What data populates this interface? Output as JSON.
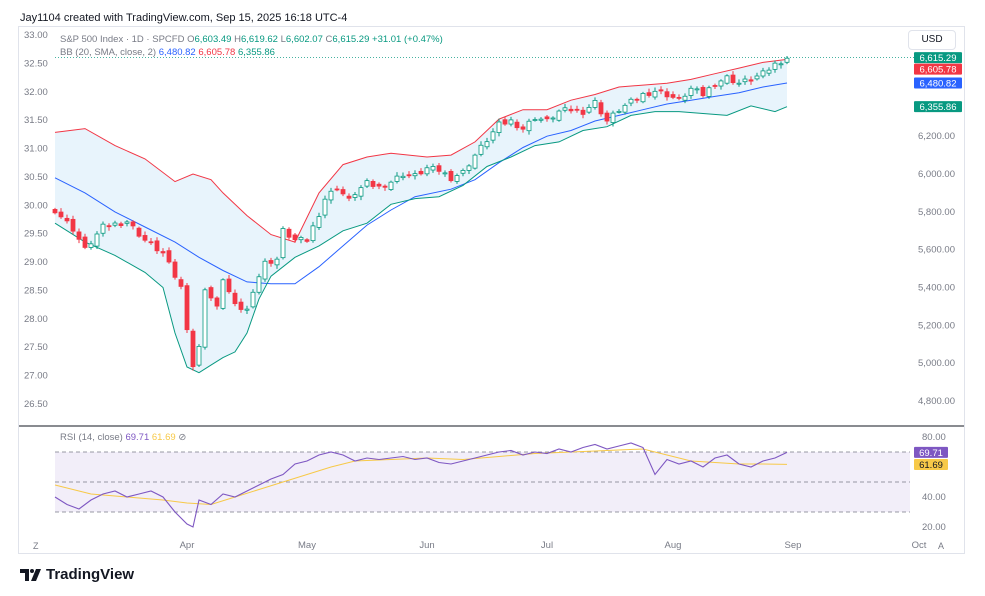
{
  "header": {
    "attribution": "Jay1104 created with TradingView.com, Sep 15, 2025 16:18 UTC-4"
  },
  "legend": {
    "symbol": "S&P 500 Index · 1D · SPCFD",
    "o_label": "O",
    "o": "6,603.49",
    "h_label": "H",
    "h": "6,619.62",
    "l_label": "L",
    "l": "6,602.07",
    "c_label": "C",
    "c": "6,615.29",
    "change": "+31.01 (+0.47%)",
    "bb_label": "BB (20, SMA, close, 2)",
    "bb_mid": "6,480.82",
    "bb_upper": "6,605.78",
    "bb_lower": "6,355.86"
  },
  "currency": "USD",
  "rsi_legend": {
    "label": "RSI (14, close)",
    "value": "69.71",
    "ma": "61.69",
    "extra": "⊘"
  },
  "footer": {
    "brand": "TradingView"
  },
  "buttons": {
    "left": "Z",
    "right": "A"
  },
  "colors": {
    "up": "#089981",
    "down": "#f23645",
    "bb_upper": "#f23645",
    "bb_lower": "#089981",
    "bb_mid": "#2962ff",
    "bb_fill": "#e8f4fc",
    "rsi": "#7e57c2",
    "rsi_ma": "#f7c948"
  },
  "chart_data": [
    {
      "type": "candlestick",
      "title": "S&P 500 Index · 1D · SPCFD",
      "left_axis": {
        "ticks": [
          "33.00",
          "32.50",
          "32.00",
          "31.50",
          "31.00",
          "30.50",
          "30.00",
          "29.50",
          "29.00",
          "28.50",
          "28.00",
          "27.50",
          "27.00",
          "26.50"
        ],
        "range": [
          26.2,
          33.0
        ]
      },
      "right_axis": {
        "ticks": [
          "6,200.00",
          "6,000.00",
          "5,800.00",
          "5,600.00",
          "5,400.00",
          "5,200.00",
          "5,000.00",
          "4,800.00"
        ],
        "range": [
          4700,
          6740
        ],
        "grid": false
      },
      "price_labels": [
        {
          "value": "6,615.29",
          "price": 6615.29,
          "color": "#089981"
        },
        {
          "value": "6,605.78",
          "price": 6605.78,
          "color": "#f23645"
        },
        {
          "value": "6,480.82",
          "price": 6480.82,
          "color": "#2962ff"
        },
        {
          "value": "6,355.86",
          "price": 6355.86,
          "color": "#089981"
        }
      ],
      "x_ticks": [
        {
          "label": "Apr",
          "index": 22
        },
        {
          "label": "May",
          "index": 42
        },
        {
          "label": "Jun",
          "index": 62
        },
        {
          "label": "Jul",
          "index": 82
        },
        {
          "label": "Aug",
          "index": 103
        },
        {
          "label": "Sep",
          "index": 123
        },
        {
          "label": "Oct",
          "index": 144
        }
      ],
      "anchors": [
        [
          0,
          5810
        ],
        [
          3,
          5710
        ],
        [
          5,
          5600
        ],
        [
          8,
          5720
        ],
        [
          12,
          5750
        ],
        [
          15,
          5650
        ],
        [
          18,
          5580
        ],
        [
          21,
          5400
        ],
        [
          23,
          4985
        ],
        [
          24,
          5080
        ],
        [
          25,
          5400
        ],
        [
          27,
          5290
        ],
        [
          28,
          5450
        ],
        [
          30,
          5300
        ],
        [
          32,
          5280
        ],
        [
          33,
          5390
        ],
        [
          35,
          5530
        ],
        [
          37,
          5550
        ],
        [
          38,
          5700
        ],
        [
          40,
          5650
        ],
        [
          42,
          5650
        ],
        [
          44,
          5790
        ],
        [
          45,
          5870
        ],
        [
          47,
          5930
        ],
        [
          49,
          5860
        ],
        [
          50,
          5900
        ],
        [
          52,
          5950
        ],
        [
          54,
          5930
        ],
        [
          56,
          5960
        ],
        [
          58,
          6000
        ],
        [
          60,
          5990
        ],
        [
          62,
          6030
        ],
        [
          64,
          6020
        ],
        [
          66,
          5980
        ],
        [
          68,
          6010
        ],
        [
          70,
          6100
        ],
        [
          72,
          6180
        ],
        [
          74,
          6260
        ],
        [
          76,
          6280
        ],
        [
          78,
          6240
        ],
        [
          80,
          6300
        ],
        [
          82,
          6280
        ],
        [
          84,
          6330
        ],
        [
          86,
          6340
        ],
        [
          88,
          6330
        ],
        [
          90,
          6380
        ],
        [
          92,
          6280
        ],
        [
          94,
          6340
        ],
        [
          96,
          6380
        ],
        [
          98,
          6420
        ],
        [
          100,
          6440
        ],
        [
          102,
          6420
        ],
        [
          104,
          6390
        ],
        [
          106,
          6450
        ],
        [
          108,
          6420
        ],
        [
          110,
          6480
        ],
        [
          112,
          6510
        ],
        [
          114,
          6480
        ],
        [
          116,
          6500
        ],
        [
          118,
          6530
        ],
        [
          120,
          6580
        ],
        [
          122,
          6615
        ]
      ],
      "bollinger_upper": [
        [
          0,
          6220
        ],
        [
          5,
          6240
        ],
        [
          10,
          6150
        ],
        [
          15,
          6080
        ],
        [
          20,
          5960
        ],
        [
          23,
          6000
        ],
        [
          26,
          5970
        ],
        [
          28,
          5900
        ],
        [
          32,
          5780
        ],
        [
          36,
          5680
        ],
        [
          40,
          5640
        ],
        [
          44,
          5900
        ],
        [
          48,
          6050
        ],
        [
          52,
          6090
        ],
        [
          56,
          6110
        ],
        [
          62,
          6090
        ],
        [
          66,
          6100
        ],
        [
          70,
          6170
        ],
        [
          74,
          6290
        ],
        [
          78,
          6340
        ],
        [
          82,
          6340
        ],
        [
          86,
          6390
        ],
        [
          90,
          6420
        ],
        [
          94,
          6460
        ],
        [
          98,
          6470
        ],
        [
          102,
          6480
        ],
        [
          106,
          6500
        ],
        [
          110,
          6530
        ],
        [
          114,
          6560
        ],
        [
          118,
          6590
        ],
        [
          122,
          6606
        ]
      ],
      "bollinger_middle": [
        [
          0,
          5980
        ],
        [
          5,
          5900
        ],
        [
          10,
          5800
        ],
        [
          15,
          5720
        ],
        [
          20,
          5640
        ],
        [
          24,
          5560
        ],
        [
          28,
          5490
        ],
        [
          32,
          5430
        ],
        [
          36,
          5420
        ],
        [
          40,
          5420
        ],
        [
          44,
          5510
        ],
        [
          48,
          5620
        ],
        [
          52,
          5730
        ],
        [
          56,
          5810
        ],
        [
          60,
          5880
        ],
        [
          66,
          5920
        ],
        [
          70,
          5970
        ],
        [
          74,
          6060
        ],
        [
          78,
          6140
        ],
        [
          82,
          6200
        ],
        [
          86,
          6230
        ],
        [
          90,
          6280
        ],
        [
          94,
          6310
        ],
        [
          98,
          6340
        ],
        [
          102,
          6370
        ],
        [
          106,
          6390
        ],
        [
          110,
          6410
        ],
        [
          114,
          6430
        ],
        [
          118,
          6460
        ],
        [
          122,
          6481
        ]
      ],
      "bollinger_lower": [
        [
          0,
          5740
        ],
        [
          5,
          5640
        ],
        [
          10,
          5570
        ],
        [
          15,
          5480
        ],
        [
          18,
          5400
        ],
        [
          20,
          5160
        ],
        [
          22,
          4980
        ],
        [
          24,
          4950
        ],
        [
          26,
          4990
        ],
        [
          28,
          5030
        ],
        [
          30,
          5060
        ],
        [
          32,
          5160
        ],
        [
          34,
          5340
        ],
        [
          36,
          5460
        ],
        [
          40,
          5560
        ],
        [
          44,
          5620
        ],
        [
          48,
          5700
        ],
        [
          52,
          5740
        ],
        [
          56,
          5840
        ],
        [
          60,
          5870
        ],
        [
          64,
          5880
        ],
        [
          68,
          5940
        ],
        [
          72,
          6040
        ],
        [
          76,
          6090
        ],
        [
          80,
          6150
        ],
        [
          84,
          6170
        ],
        [
          88,
          6230
        ],
        [
          92,
          6250
        ],
        [
          96,
          6310
        ],
        [
          100,
          6330
        ],
        [
          104,
          6330
        ],
        [
          108,
          6320
        ],
        [
          112,
          6310
        ],
        [
          116,
          6360
        ],
        [
          120,
          6330
        ],
        [
          122,
          6356
        ]
      ]
    },
    {
      "type": "line",
      "title": "RSI (14, close)",
      "y_ticks": [
        "80.00",
        "60.00",
        "40.00",
        "20.00"
      ],
      "ylim": [
        18,
        86
      ],
      "bands": [
        70,
        50,
        30
      ],
      "series": [
        {
          "name": "RSI",
          "points": [
            [
              0,
              40
            ],
            [
              2,
              35
            ],
            [
              4,
              32
            ],
            [
              6,
              38
            ],
            [
              8,
              42
            ],
            [
              10,
              44
            ],
            [
              12,
              40
            ],
            [
              14,
              42
            ],
            [
              16,
              44
            ],
            [
              18,
              40
            ],
            [
              20,
              30
            ],
            [
              22,
              22
            ],
            [
              23,
              20
            ],
            [
              24,
              38
            ],
            [
              26,
              35
            ],
            [
              28,
              42
            ],
            [
              30,
              40
            ],
            [
              32,
              44
            ],
            [
              34,
              48
            ],
            [
              36,
              52
            ],
            [
              38,
              55
            ],
            [
              40,
              62
            ],
            [
              42,
              64
            ],
            [
              44,
              68
            ],
            [
              46,
              70
            ],
            [
              48,
              68
            ],
            [
              50,
              64
            ],
            [
              52,
              66
            ],
            [
              54,
              65
            ],
            [
              56,
              66
            ],
            [
              58,
              67
            ],
            [
              60,
              65
            ],
            [
              62,
              66
            ],
            [
              64,
              63
            ],
            [
              66,
              62
            ],
            [
              68,
              64
            ],
            [
              70,
              66
            ],
            [
              72,
              68
            ],
            [
              74,
              70
            ],
            [
              76,
              71
            ],
            [
              78,
              68
            ],
            [
              80,
              70
            ],
            [
              82,
              69
            ],
            [
              84,
              72
            ],
            [
              86,
              70
            ],
            [
              88,
              73
            ],
            [
              90,
              75
            ],
            [
              92,
              72
            ],
            [
              94,
              74
            ],
            [
              96,
              76
            ],
            [
              98,
              73
            ],
            [
              100,
              55
            ],
            [
              102,
              65
            ],
            [
              104,
              62
            ],
            [
              106,
              64
            ],
            [
              108,
              60
            ],
            [
              110,
              66
            ],
            [
              112,
              68
            ],
            [
              114,
              62
            ],
            [
              116,
              60
            ],
            [
              118,
              64
            ],
            [
              120,
              66
            ],
            [
              122,
              69.7
            ]
          ]
        },
        {
          "name": "MA",
          "points": [
            [
              0,
              48
            ],
            [
              6,
              42
            ],
            [
              12,
              40
            ],
            [
              18,
              38
            ],
            [
              22,
              36
            ],
            [
              26,
              35
            ],
            [
              30,
              40
            ],
            [
              34,
              45
            ],
            [
              38,
              50
            ],
            [
              42,
              55
            ],
            [
              46,
              60
            ],
            [
              50,
              64
            ],
            [
              56,
              65
            ],
            [
              62,
              66
            ],
            [
              68,
              65
            ],
            [
              74,
              67
            ],
            [
              80,
              69
            ],
            [
              86,
              70
            ],
            [
              92,
              71
            ],
            [
              98,
              72
            ],
            [
              102,
              68
            ],
            [
              106,
              64
            ],
            [
              110,
              63
            ],
            [
              114,
              62
            ],
            [
              118,
              62
            ],
            [
              122,
              61.7
            ]
          ]
        }
      ]
    }
  ]
}
